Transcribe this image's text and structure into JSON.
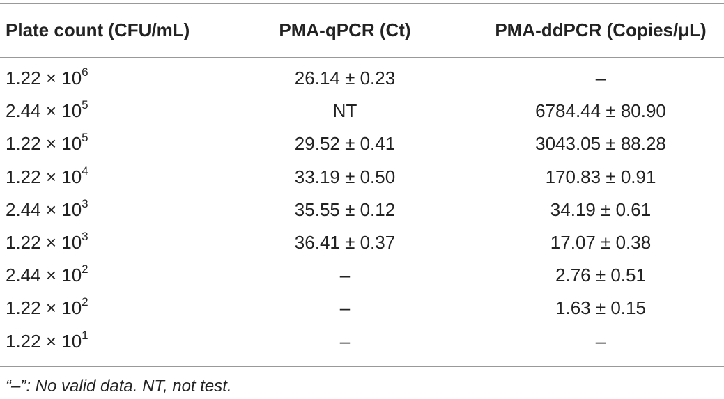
{
  "table": {
    "header": [
      "Plate count (CFU/mL)",
      "PMA-qPCR (Ct)",
      "PMA-ddPCR (Copies/μL)"
    ],
    "rows": [
      [
        {
          "base": "1.22 × 10",
          "exp": "6"
        },
        "26.14 ± 0.23",
        "–"
      ],
      [
        {
          "base": "2.44 × 10",
          "exp": "5"
        },
        "NT",
        "6784.44 ± 80.90"
      ],
      [
        {
          "base": "1.22 × 10",
          "exp": "5"
        },
        "29.52 ± 0.41",
        "3043.05 ± 88.28"
      ],
      [
        {
          "base": "1.22 × 10",
          "exp": "4"
        },
        "33.19 ± 0.50",
        "170.83 ± 0.91"
      ],
      [
        {
          "base": "2.44 × 10",
          "exp": "3"
        },
        "35.55 ± 0.12",
        "34.19 ± 0.61"
      ],
      [
        {
          "base": "1.22 × 10",
          "exp": "3"
        },
        "36.41 ± 0.37",
        "17.07 ± 0.38"
      ],
      [
        {
          "base": "2.44 × 10",
          "exp": "2"
        },
        "–",
        "2.76 ± 0.51"
      ],
      [
        {
          "base": "1.22 × 10",
          "exp": "2"
        },
        "–",
        "1.63 ± 0.15"
      ],
      [
        {
          "base": "1.22 × 10",
          "exp": "1"
        },
        "–",
        "–"
      ]
    ],
    "footnote": "“–”: No valid data. NT, not test."
  }
}
